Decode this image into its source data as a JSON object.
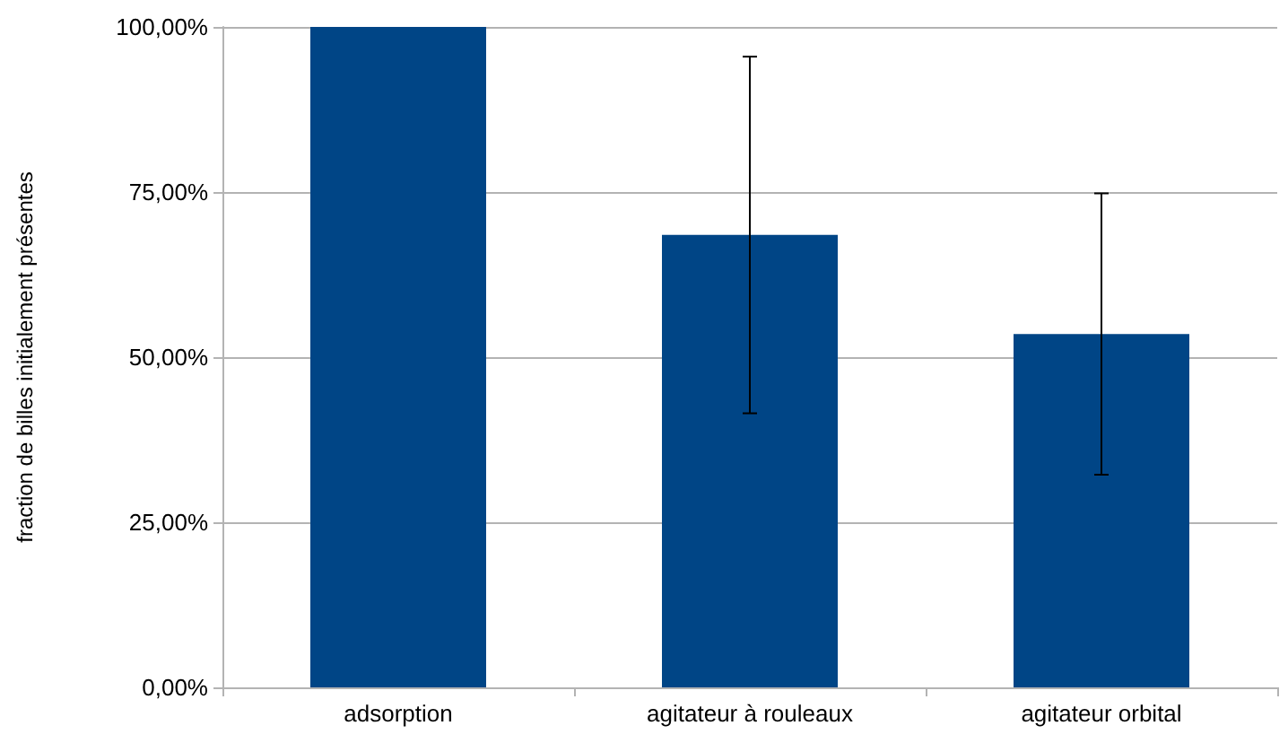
{
  "chart_data": {
    "type": "bar",
    "ylabel": "fraction de billes initialement présentes",
    "categories": [
      "adsorption",
      "agitateur à rouleaux",
      "agitateur orbital"
    ],
    "series": [
      {
        "color": "#004586",
        "values": [
          100,
          68.5,
          53.5
        ],
        "errors": [
          null,
          27,
          21.3
        ]
      }
    ],
    "ylim": [
      0,
      100
    ],
    "yticks": [
      {
        "value": 0,
        "label": "0,00%"
      },
      {
        "value": 25,
        "label": "25,00%"
      },
      {
        "value": 50,
        "label": "50,00%"
      },
      {
        "value": 75,
        "label": "75,00%"
      },
      {
        "value": 100,
        "label": "100,00%"
      }
    ],
    "grid": "y"
  }
}
